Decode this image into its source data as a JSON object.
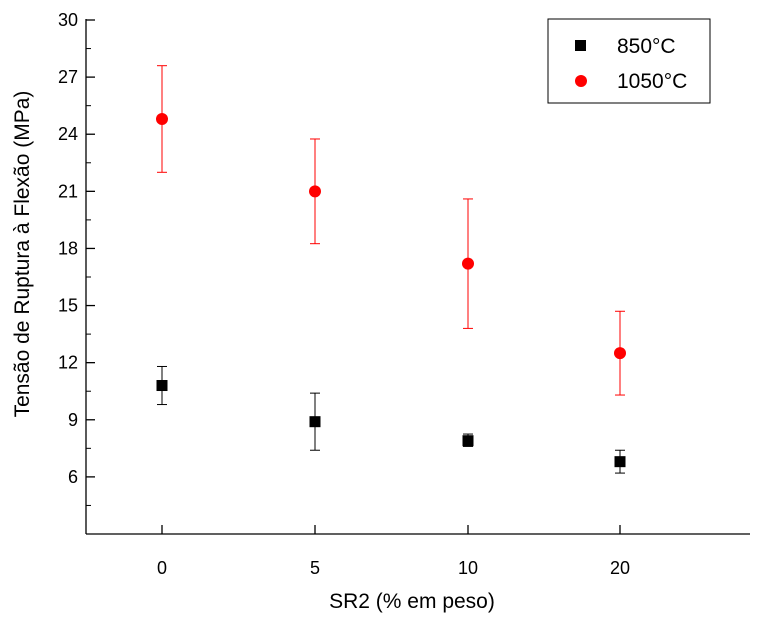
{
  "chart_data": {
    "type": "scatter",
    "xlabel": "SR2 (% em peso)",
    "ylabel": "Tensão de Ruptura à Flexão (MPa)",
    "categories": [
      "0",
      "5",
      "10",
      "20"
    ],
    "ylim": [
      3,
      30
    ],
    "yticks": [
      6,
      9,
      12,
      15,
      18,
      21,
      24,
      27,
      30
    ],
    "legend_position": "top-right",
    "grid": false,
    "series": [
      {
        "name": "850°C",
        "marker": "square",
        "color": "#000000",
        "values": [
          10.8,
          8.9,
          7.9,
          6.8
        ],
        "error_low": [
          9.8,
          7.4,
          7.6,
          6.2
        ],
        "error_high": [
          11.8,
          10.4,
          8.25,
          7.4
        ]
      },
      {
        "name": "1050°C",
        "marker": "circle",
        "color": "#ff0000",
        "values": [
          24.8,
          21.0,
          17.2,
          12.5
        ],
        "error_low": [
          22.0,
          18.25,
          13.8,
          10.3
        ],
        "error_high": [
          27.6,
          23.75,
          20.6,
          14.7
        ]
      }
    ]
  }
}
